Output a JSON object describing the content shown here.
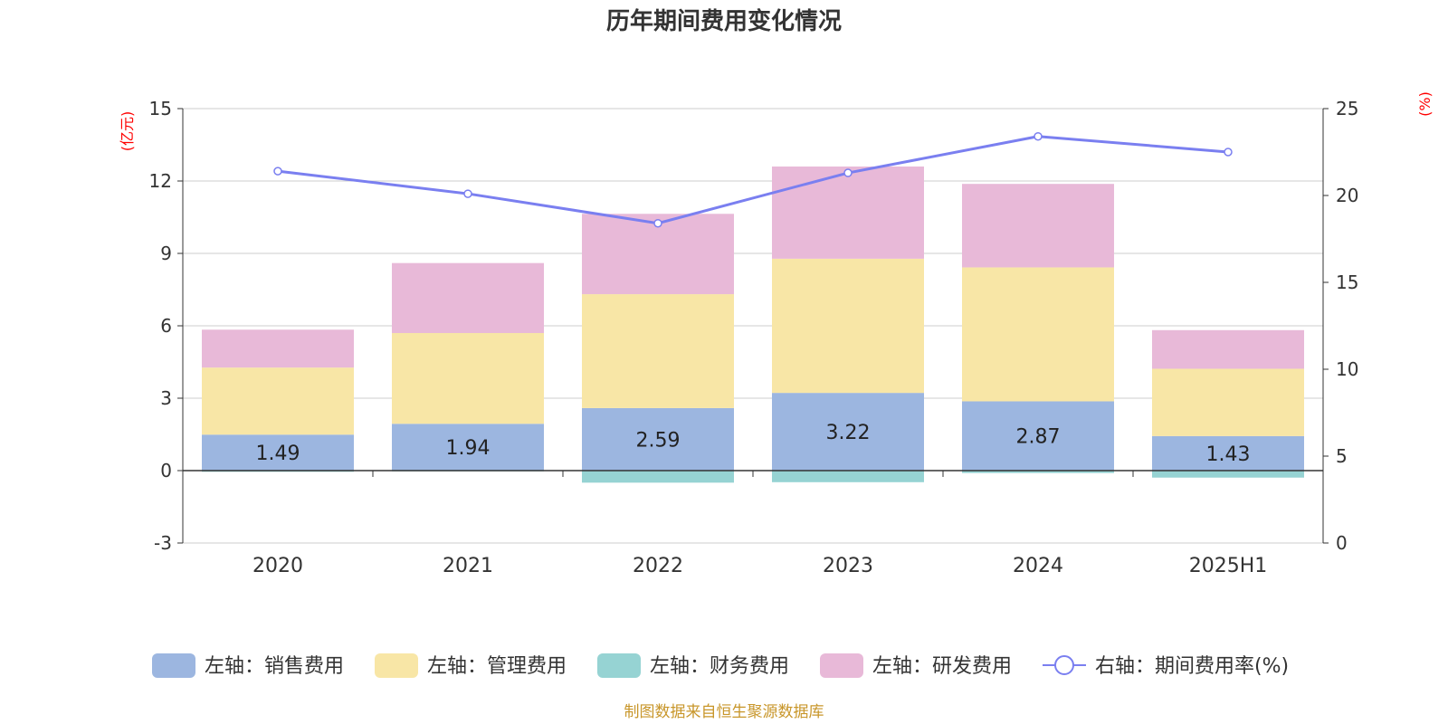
{
  "chart_data": {
    "type": "bar",
    "title": "历年期间费用变化情况",
    "categories": [
      "2020",
      "2021",
      "2022",
      "2023",
      "2024",
      "2025H1"
    ],
    "left_axis": {
      "unit": "(亿元)",
      "ylim": [
        -3,
        15
      ],
      "ticks": [
        -3,
        0,
        3,
        6,
        9,
        12,
        15
      ]
    },
    "right_axis": {
      "unit": "(%)",
      "ylim": [
        0,
        25
      ],
      "ticks": [
        0,
        5,
        10,
        15,
        20,
        25
      ]
    },
    "series": [
      {
        "name": "左轴：销售费用",
        "type": "bar",
        "axis": "left",
        "color": "#9cb6e0",
        "values": [
          1.49,
          1.94,
          2.59,
          3.22,
          2.87,
          1.43
        ],
        "show_labels": true
      },
      {
        "name": "左轴：管理费用",
        "type": "bar",
        "axis": "left",
        "color": "#f8e6a6",
        "values": [
          2.78,
          3.76,
          4.72,
          5.56,
          5.55,
          2.79
        ]
      },
      {
        "name": "左轴：财务费用",
        "type": "bar",
        "axis": "left",
        "color": "#96d3d3",
        "values": [
          -0.05,
          -0.03,
          -0.5,
          -0.48,
          -0.1,
          -0.29
        ]
      },
      {
        "name": "左轴：研发费用",
        "type": "bar",
        "axis": "left",
        "color": "#e8b9d8",
        "values": [
          1.57,
          2.9,
          3.33,
          3.82,
          3.46,
          1.6
        ]
      },
      {
        "name": "右轴：期间费用率(%)",
        "type": "line",
        "axis": "right",
        "color": "#7a7ff0",
        "values": [
          21.4,
          20.1,
          18.4,
          21.3,
          23.4,
          22.5
        ]
      }
    ],
    "grid": true,
    "legend_position": "bottom"
  },
  "source_note": "制图数据来自恒生聚源数据库"
}
